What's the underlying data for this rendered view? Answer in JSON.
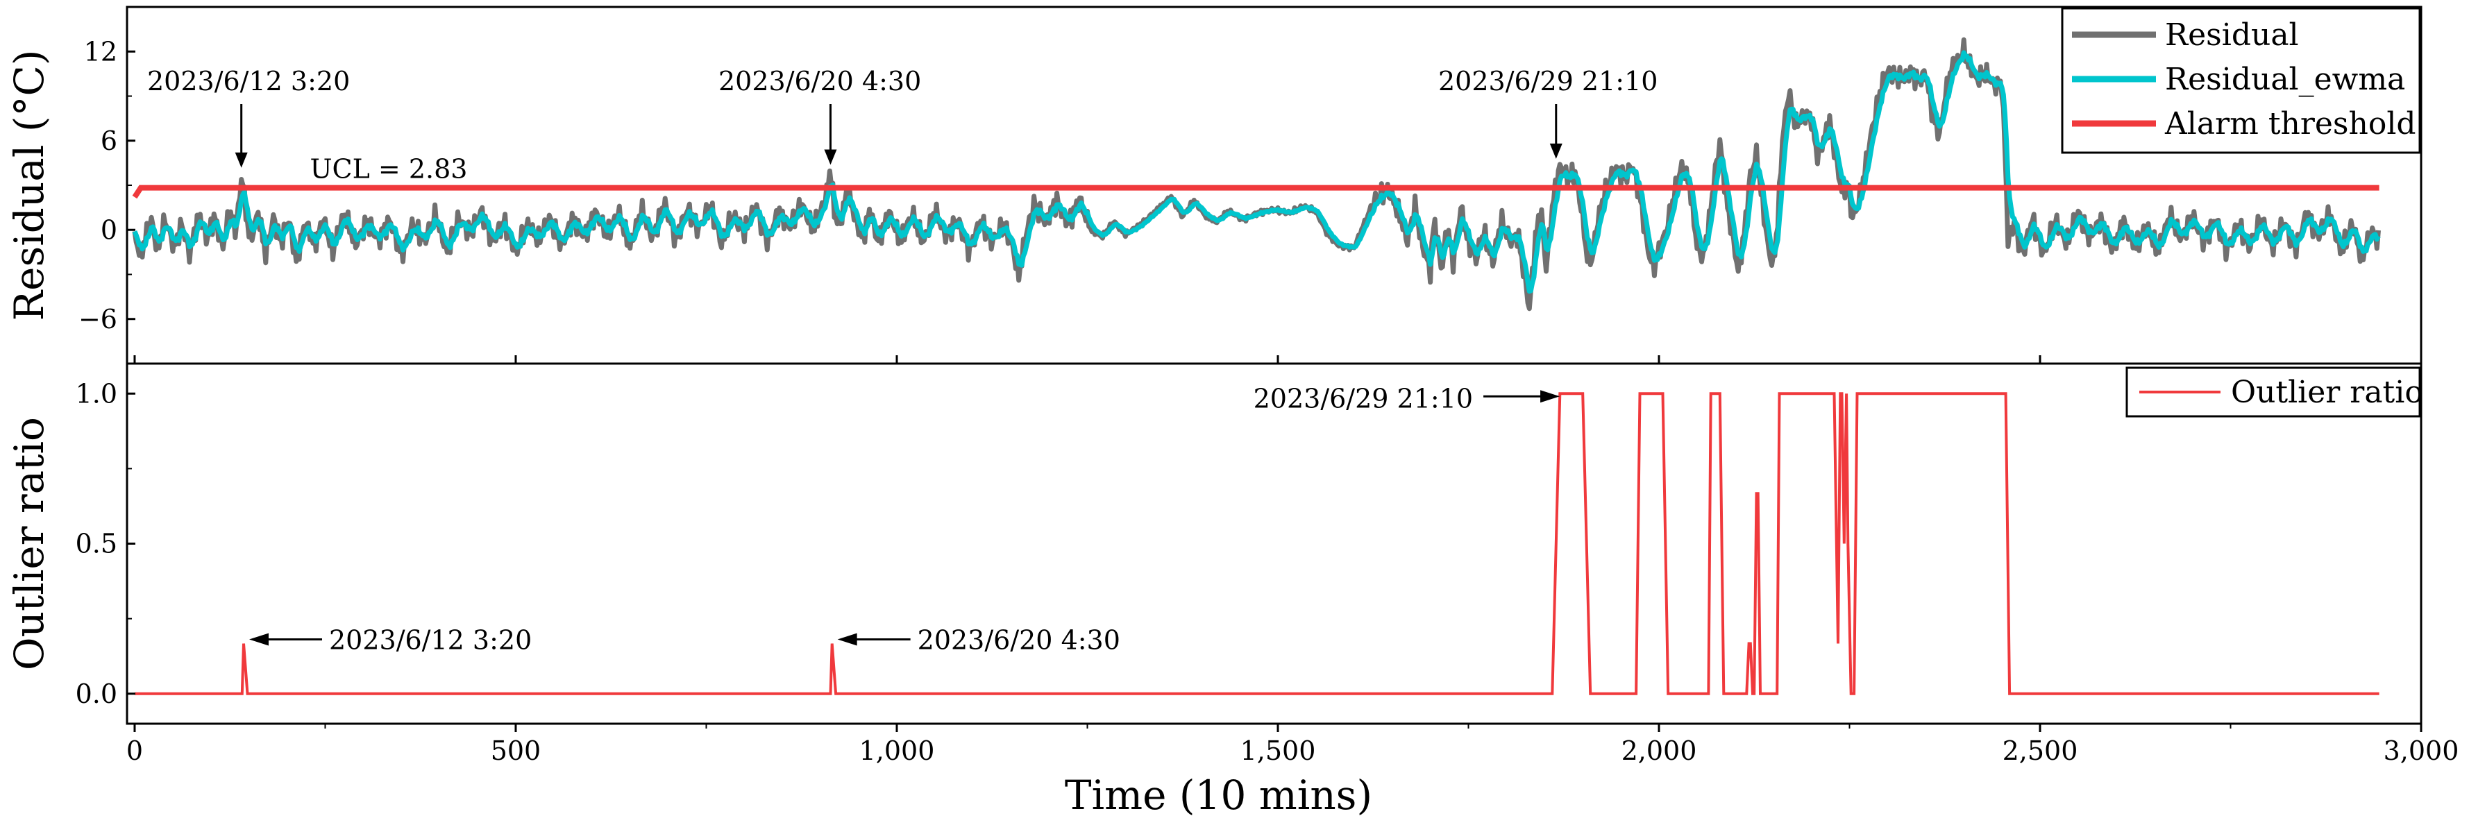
{
  "chart_data": [
    {
      "panel": "top",
      "type": "line",
      "ylabel": "Residual (°C)",
      "ylim": [
        -9,
        15
      ],
      "yticks": [
        -6,
        0,
        6,
        12
      ],
      "ytick_labels": [
        "−6",
        "0",
        "6",
        "12"
      ],
      "xlim": [
        -10,
        3000
      ],
      "grid": false,
      "legend_position": "top-right",
      "legend": [
        {
          "label": "Residual",
          "color": "#707070"
        },
        {
          "label": "Residual_ewma",
          "color": "#00C5CD"
        },
        {
          "label": "Alarm threshold",
          "color": "#F0393C"
        }
      ],
      "ucl": {
        "label": "UCL = 2.83",
        "value": 2.83
      },
      "residual_keypoints": [
        [
          0,
          -0.6
        ],
        [
          8,
          -1.8
        ],
        [
          15,
          -0.4
        ],
        [
          22,
          0.7
        ],
        [
          30,
          -1.2
        ],
        [
          40,
          0.9
        ],
        [
          52,
          -0.9
        ],
        [
          62,
          0.6
        ],
        [
          72,
          -1.4
        ],
        [
          85,
          1.2
        ],
        [
          95,
          -0.7
        ],
        [
          105,
          0.8
        ],
        [
          115,
          -1.5
        ],
        [
          125,
          1.0
        ],
        [
          132,
          -0.3
        ],
        [
          138,
          1.9
        ],
        [
          141,
          3.9
        ],
        [
          145,
          1.2
        ],
        [
          152,
          -0.9
        ],
        [
          162,
          1.1
        ],
        [
          172,
          -1.6
        ],
        [
          182,
          0.9
        ],
        [
          192,
          -0.6
        ],
        [
          202,
          1.0
        ],
        [
          212,
          -1.8
        ],
        [
          224,
          0.7
        ],
        [
          236,
          -0.9
        ],
        [
          248,
          0.6
        ],
        [
          260,
          -1.6
        ],
        [
          275,
          0.9
        ],
        [
          290,
          -1.2
        ],
        [
          305,
          0.4
        ],
        [
          320,
          -0.7
        ],
        [
          335,
          0.8
        ],
        [
          350,
          -1.4
        ],
        [
          365,
          0.6
        ],
        [
          380,
          -0.6
        ],
        [
          395,
          1.0
        ],
        [
          410,
          -1.7
        ],
        [
          425,
          0.5
        ],
        [
          440,
          -0.4
        ],
        [
          455,
          1.1
        ],
        [
          470,
          -0.8
        ],
        [
          485,
          0.7
        ],
        [
          500,
          -1.3
        ],
        [
          515,
          0.6
        ],
        [
          530,
          -0.5
        ],
        [
          545,
          0.8
        ],
        [
          560,
          -1.2
        ],
        [
          575,
          0.5
        ],
        [
          590,
          -0.7
        ],
        [
          605,
          1.0
        ],
        [
          620,
          -0.3
        ],
        [
          635,
          1.3
        ],
        [
          650,
          -0.9
        ],
        [
          665,
          1.6
        ],
        [
          680,
          -0.4
        ],
        [
          695,
          1.8
        ],
        [
          710,
          -0.8
        ],
        [
          725,
          1.2
        ],
        [
          740,
          -0.2
        ],
        [
          755,
          1.4
        ],
        [
          770,
          -0.9
        ],
        [
          785,
          1.1
        ],
        [
          800,
          0.1
        ],
        [
          815,
          1.9
        ],
        [
          830,
          -0.6
        ],
        [
          845,
          1.2
        ],
        [
          860,
          0.1
        ],
        [
          875,
          1.5
        ],
        [
          890,
          -0.2
        ],
        [
          900,
          1.0
        ],
        [
          908,
          2.3
        ],
        [
          913,
          4.1
        ],
        [
          918,
          1.1
        ],
        [
          925,
          0.2
        ],
        [
          935,
          2.8
        ],
        [
          945,
          1.1
        ],
        [
          955,
          -0.4
        ],
        [
          965,
          1.6
        ],
        [
          975,
          -0.6
        ],
        [
          990,
          1.2
        ],
        [
          1005,
          -0.8
        ],
        [
          1020,
          0.9
        ],
        [
          1035,
          -1.1
        ],
        [
          1050,
          1.0
        ],
        [
          1065,
          -0.5
        ],
        [
          1080,
          0.7
        ],
        [
          1095,
          -1.2
        ],
        [
          1110,
          0.9
        ],
        [
          1125,
          -0.6
        ],
        [
          1140,
          0.4
        ],
        [
          1152,
          -1.2
        ],
        [
          1160,
          -3.2
        ],
        [
          1170,
          -0.4
        ],
        [
          1180,
          1.5
        ],
        [
          1195,
          0.3
        ],
        [
          1210,
          1.8
        ],
        [
          1225,
          0.4
        ],
        [
          1240,
          2.2
        ],
        [
          1255,
          0.0
        ],
        [
          1270,
          -0.4
        ],
        [
          1285,
          0.6
        ],
        [
          1300,
          -0.3
        ],
        [
          1320,
          0.3
        ],
        [
          1340,
          1.2
        ],
        [
          1360,
          2.2
        ],
        [
          1375,
          0.9
        ],
        [
          1390,
          2.0
        ],
        [
          1405,
          1.0
        ],
        [
          1420,
          0.6
        ],
        [
          1435,
          1.3
        ],
        [
          1455,
          0.7
        ],
        [
          1475,
          1.1
        ],
        [
          1495,
          1.3
        ],
        [
          1515,
          1.1
        ],
        [
          1535,
          1.6
        ],
        [
          1550,
          1.3
        ],
        [
          1565,
          -0.2
        ],
        [
          1580,
          -1.0
        ],
        [
          1600,
          -1.2
        ],
        [
          1615,
          0.6
        ],
        [
          1630,
          1.9
        ],
        [
          1645,
          2.4
        ],
        [
          1660,
          0.8
        ],
        [
          1670,
          -0.8
        ],
        [
          1680,
          1.6
        ],
        [
          1690,
          -1.0
        ],
        [
          1700,
          -2.6
        ],
        [
          1705,
          1.0
        ],
        [
          1715,
          -2.5
        ],
        [
          1722,
          0.5
        ],
        [
          1730,
          -1.9
        ],
        [
          1740,
          1.6
        ],
        [
          1750,
          -0.8
        ],
        [
          1760,
          -2.0
        ],
        [
          1770,
          -0.3
        ],
        [
          1782,
          -2.4
        ],
        [
          1793,
          0.4
        ],
        [
          1805,
          -1.0
        ],
        [
          1815,
          -0.5
        ],
        [
          1825,
          -3.6
        ],
        [
          1830,
          -5.3
        ],
        [
          1838,
          -0.5
        ],
        [
          1845,
          1.7
        ],
        [
          1852,
          -2.4
        ],
        [
          1858,
          0.8
        ],
        [
          1863,
          2.8
        ],
        [
          1870,
          4.5
        ],
        [
          1880,
          3.7
        ],
        [
          1890,
          4.0
        ],
        [
          1898,
          1.6
        ],
        [
          1905,
          -1.6
        ],
        [
          1912,
          -2.1
        ],
        [
          1920,
          0.6
        ],
        [
          1930,
          2.4
        ],
        [
          1942,
          3.9
        ],
        [
          1955,
          3.3
        ],
        [
          1965,
          4.2
        ],
        [
          1975,
          2.3
        ],
        [
          1985,
          -1.2
        ],
        [
          1993,
          -2.5
        ],
        [
          2000,
          -1.3
        ],
        [
          2010,
          0.3
        ],
        [
          2020,
          2.6
        ],
        [
          2030,
          4.5
        ],
        [
          2040,
          3.3
        ],
        [
          2050,
          -1.0
        ],
        [
          2058,
          -1.9
        ],
        [
          2066,
          0.5
        ],
        [
          2072,
          3.1
        ],
        [
          2080,
          5.7
        ],
        [
          2090,
          1.3
        ],
        [
          2098,
          -1.1
        ],
        [
          2104,
          -3.0
        ],
        [
          2112,
          -0.4
        ],
        [
          2120,
          3.6
        ],
        [
          2128,
          5.0
        ],
        [
          2136,
          1.8
        ],
        [
          2144,
          -1.3
        ],
        [
          2150,
          -2.2
        ],
        [
          2156,
          0.8
        ],
        [
          2162,
          6.3
        ],
        [
          2170,
          9.5
        ],
        [
          2180,
          7.3
        ],
        [
          2190,
          7.9
        ],
        [
          2200,
          7.6
        ],
        [
          2208,
          4.9
        ],
        [
          2216,
          6.0
        ],
        [
          2224,
          7.1
        ],
        [
          2233,
          4.3
        ],
        [
          2240,
          2.4
        ],
        [
          2248,
          2.8
        ],
        [
          2254,
          0.5
        ],
        [
          2262,
          1.6
        ],
        [
          2270,
          3.8
        ],
        [
          2280,
          6.8
        ],
        [
          2290,
          9.3
        ],
        [
          2300,
          10.8
        ],
        [
          2310,
          10.6
        ],
        [
          2320,
          10.4
        ],
        [
          2330,
          10.9
        ],
        [
          2340,
          10.2
        ],
        [
          2350,
          10.6
        ],
        [
          2360,
          7.5
        ],
        [
          2368,
          6.3
        ],
        [
          2376,
          8.9
        ],
        [
          2384,
          10.6
        ],
        [
          2392,
          11.2
        ],
        [
          2400,
          11.8
        ],
        [
          2408,
          10.8
        ],
        [
          2416,
          9.9
        ],
        [
          2428,
          10.5
        ],
        [
          2440,
          9.8
        ],
        [
          2450,
          9.9
        ],
        [
          2455,
          4.5
        ],
        [
          2458,
          -0.6
        ],
        [
          2465,
          0.7
        ],
        [
          2478,
          -1.3
        ],
        [
          2490,
          0.9
        ],
        [
          2505,
          -1.6
        ],
        [
          2520,
          0.5
        ],
        [
          2535,
          -1.1
        ],
        [
          2550,
          0.9
        ],
        [
          2565,
          -0.7
        ],
        [
          2580,
          0.6
        ],
        [
          2595,
          -1.2
        ],
        [
          2610,
          0.7
        ],
        [
          2625,
          -0.9
        ],
        [
          2640,
          0.4
        ],
        [
          2655,
          -1.4
        ],
        [
          2670,
          0.9
        ],
        [
          2685,
          -0.8
        ],
        [
          2700,
          0.6
        ],
        [
          2715,
          -1.0
        ],
        [
          2730,
          0.7
        ],
        [
          2745,
          -1.3
        ],
        [
          2760,
          0.5
        ],
        [
          2775,
          -0.9
        ],
        [
          2790,
          0.8
        ],
        [
          2805,
          -1.1
        ],
        [
          2820,
          0.5
        ],
        [
          2835,
          -1.5
        ],
        [
          2850,
          0.8
        ],
        [
          2865,
          -0.6
        ],
        [
          2880,
          1.0
        ],
        [
          2895,
          -1.4
        ],
        [
          2910,
          0.6
        ],
        [
          2922,
          -1.7
        ],
        [
          2935,
          0.2
        ],
        [
          2945,
          -0.6
        ]
      ],
      "alarm_threshold": [
        [
          0,
          2.2
        ],
        [
          8,
          2.83
        ],
        [
          2945,
          2.83
        ]
      ],
      "annotations": [
        {
          "text": "2023/6/12 3:20",
          "x": 140,
          "y": 3.9
        },
        {
          "text": "2023/6/20 4:30",
          "x": 913,
          "y": 4.1
        },
        {
          "text": "2023/6/29 21:10",
          "x": 1865,
          "y": 4.5
        }
      ]
    },
    {
      "panel": "bottom",
      "type": "line",
      "title": "",
      "xlabel": "Time (10 mins)",
      "ylabel": "Outlier ratio",
      "xlim": [
        -10,
        3000
      ],
      "ylim": [
        -0.1,
        1.1
      ],
      "xticks": [
        0,
        500,
        1000,
        1500,
        2000,
        2500,
        3000
      ],
      "xtick_labels": [
        "0",
        "500",
        "1,000",
        "1,500",
        "2,000",
        "2,500",
        "3,000"
      ],
      "yticks": [
        0.0,
        0.5,
        1.0
      ],
      "ytick_labels": [
        "0.0",
        "0.5",
        "1.0"
      ],
      "grid": false,
      "legend_position": "top-right",
      "legend": [
        {
          "label": "Outlier ratio",
          "color": "#F0393C"
        }
      ],
      "points": [
        [
          0,
          0
        ],
        [
          141,
          0
        ],
        [
          143,
          0.167
        ],
        [
          148,
          0
        ],
        [
          913,
          0
        ],
        [
          915,
          0.167
        ],
        [
          920,
          0
        ],
        [
          1860,
          0
        ],
        [
          1870,
          1
        ],
        [
          1900,
          1
        ],
        [
          1910,
          0
        ],
        [
          1970,
          0
        ],
        [
          1975,
          1
        ],
        [
          2005,
          1
        ],
        [
          2012,
          0
        ],
        [
          2065,
          0
        ],
        [
          2068,
          1
        ],
        [
          2080,
          1
        ],
        [
          2085,
          0
        ],
        [
          2115,
          0
        ],
        [
          2118,
          0.167
        ],
        [
          2120,
          0.167
        ],
        [
          2123,
          0
        ],
        [
          2125,
          0
        ],
        [
          2128,
          0.667
        ],
        [
          2130,
          0.667
        ],
        [
          2133,
          0
        ],
        [
          2155,
          0
        ],
        [
          2158,
          1
        ],
        [
          2230,
          1
        ],
        [
          2235,
          0.167
        ],
        [
          2238,
          1
        ],
        [
          2240,
          1
        ],
        [
          2243,
          0.5
        ],
        [
          2246,
          1
        ],
        [
          2248,
          0.5
        ],
        [
          2252,
          0
        ],
        [
          2256,
          0
        ],
        [
          2260,
          1
        ],
        [
          2455,
          1
        ],
        [
          2460,
          0
        ],
        [
          2945,
          0
        ]
      ],
      "annotations": [
        {
          "text": "2023/6/12 3:20",
          "x": 143,
          "y": 0.167
        },
        {
          "text": "2023/6/20 4:30",
          "x": 915,
          "y": 0.167
        },
        {
          "text": "2023/6/29 21:10",
          "x": 1868,
          "y": 1.0
        }
      ]
    }
  ]
}
